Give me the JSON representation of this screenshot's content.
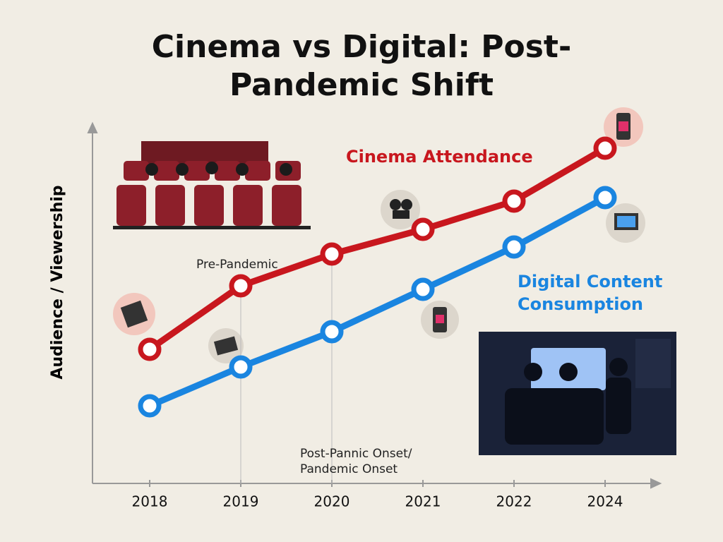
{
  "chart_data": {
    "type": "line",
    "title": "Cinema vs Digital: Post-Pandemic Shift",
    "y_label": "Audience / Viewership",
    "categories": [
      "2018",
      "2019",
      "2020",
      "2021",
      "2022",
      "2024"
    ],
    "series": [
      {
        "name": "Cinema Attendance",
        "color": "#c8171e",
        "values": [
          38,
          56,
          65,
          72,
          80,
          95
        ]
      },
      {
        "name": "Digital Content Consumption",
        "color": "#1a85e0",
        "values": [
          22,
          33,
          43,
          55,
          67,
          81
        ]
      }
    ],
    "ylim": [
      0,
      100
    ],
    "annotations": [
      "Pre-Pandemic",
      "Post-Pannic Onset/ Pandemic Onset"
    ]
  }
}
